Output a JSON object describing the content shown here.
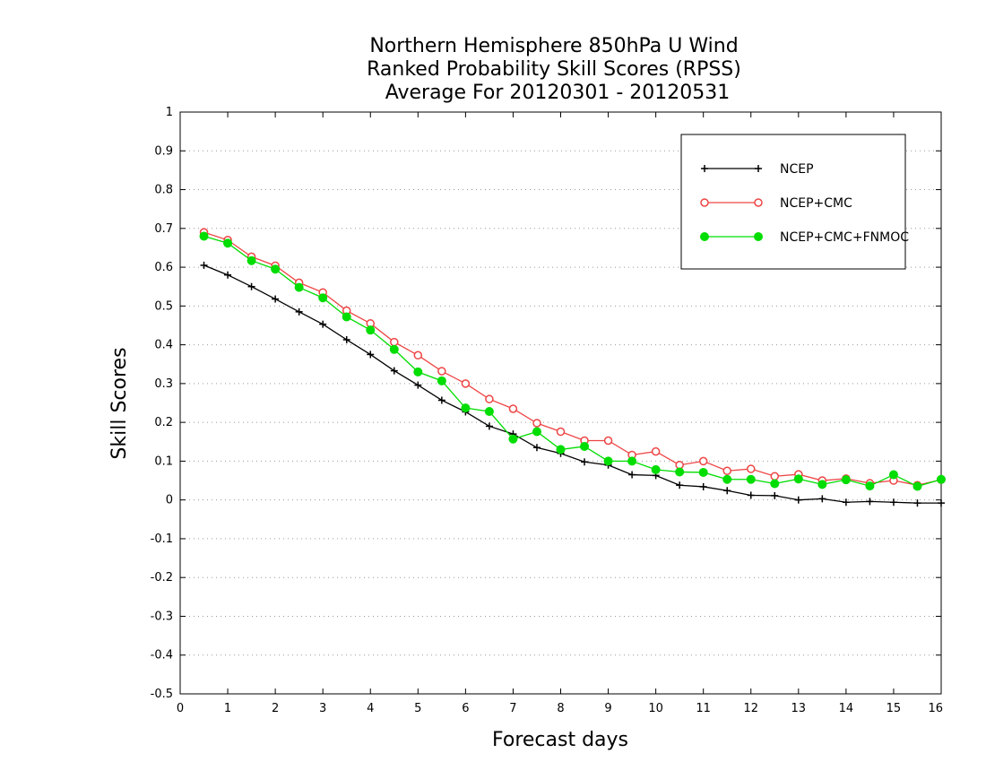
{
  "chart_data": {
    "type": "line",
    "title": [
      "Northern Hemisphere 850hPa U Wind",
      "Ranked Probability Skill Scores (RPSS)",
      "Average For 20120301 - 20120531"
    ],
    "xlabel": "Forecast days",
    "ylabel": "Skill Scores",
    "xlim": [
      0,
      16
    ],
    "ylim": [
      -0.5,
      1
    ],
    "x_ticks": [
      "0",
      "1",
      "2",
      "3",
      "4",
      "5",
      "6",
      "7",
      "8",
      "9",
      "10",
      "11",
      "12",
      "13",
      "14",
      "15",
      "16"
    ],
    "y_ticks": [
      "-0.5",
      "-0.4",
      "-0.3",
      "-0.2",
      "-0.1",
      "0",
      "0.1",
      "0.2",
      "0.3",
      "0.4",
      "0.5",
      "0.6",
      "0.7",
      "0.8",
      "0.9",
      "1"
    ],
    "grid": true,
    "legend_position": "top-right",
    "x": [
      0.5,
      1,
      1.5,
      2,
      2.5,
      3,
      3.5,
      4,
      4.5,
      5,
      5.5,
      6,
      6.5,
      7,
      7.5,
      8,
      8.5,
      9,
      9.5,
      10,
      10.5,
      11,
      11.5,
      12,
      12.5,
      13,
      13.5,
      14,
      14.5,
      15,
      15.5,
      16
    ],
    "series": [
      {
        "name": "NCEP",
        "color": "#000000",
        "marker": "plus",
        "values": [
          0.605,
          0.58,
          0.55,
          0.518,
          0.485,
          0.453,
          0.413,
          0.375,
          0.333,
          0.296,
          0.257,
          0.227,
          0.19,
          0.17,
          0.135,
          0.12,
          0.098,
          0.09,
          0.065,
          0.063,
          0.038,
          0.034,
          0.024,
          0.012,
          0.011,
          0.0,
          0.003,
          -0.006,
          -0.004,
          -0.006,
          -0.008,
          -0.008
        ]
      },
      {
        "name": "NCEP+CMC",
        "color": "#ee4444",
        "marker": "open-circle",
        "values": [
          0.69,
          0.67,
          0.627,
          0.604,
          0.56,
          0.535,
          0.488,
          0.455,
          0.407,
          0.373,
          0.332,
          0.3,
          0.26,
          0.235,
          0.198,
          0.176,
          0.153,
          0.153,
          0.116,
          0.125,
          0.09,
          0.1,
          0.075,
          0.08,
          0.061,
          0.066,
          0.05,
          0.055,
          0.043,
          0.05,
          0.038,
          0.052
        ]
      },
      {
        "name": "NCEP+CMC+FNMOC",
        "color": "#00dd00",
        "marker": "filled-circle",
        "values": [
          0.68,
          0.662,
          0.617,
          0.595,
          0.548,
          0.521,
          0.472,
          0.438,
          0.388,
          0.33,
          0.307,
          0.237,
          0.228,
          0.157,
          0.176,
          0.13,
          0.138,
          0.1,
          0.1,
          0.078,
          0.072,
          0.071,
          0.053,
          0.053,
          0.042,
          0.054,
          0.04,
          0.052,
          0.036,
          0.065,
          0.035,
          0.053
        ]
      }
    ]
  }
}
